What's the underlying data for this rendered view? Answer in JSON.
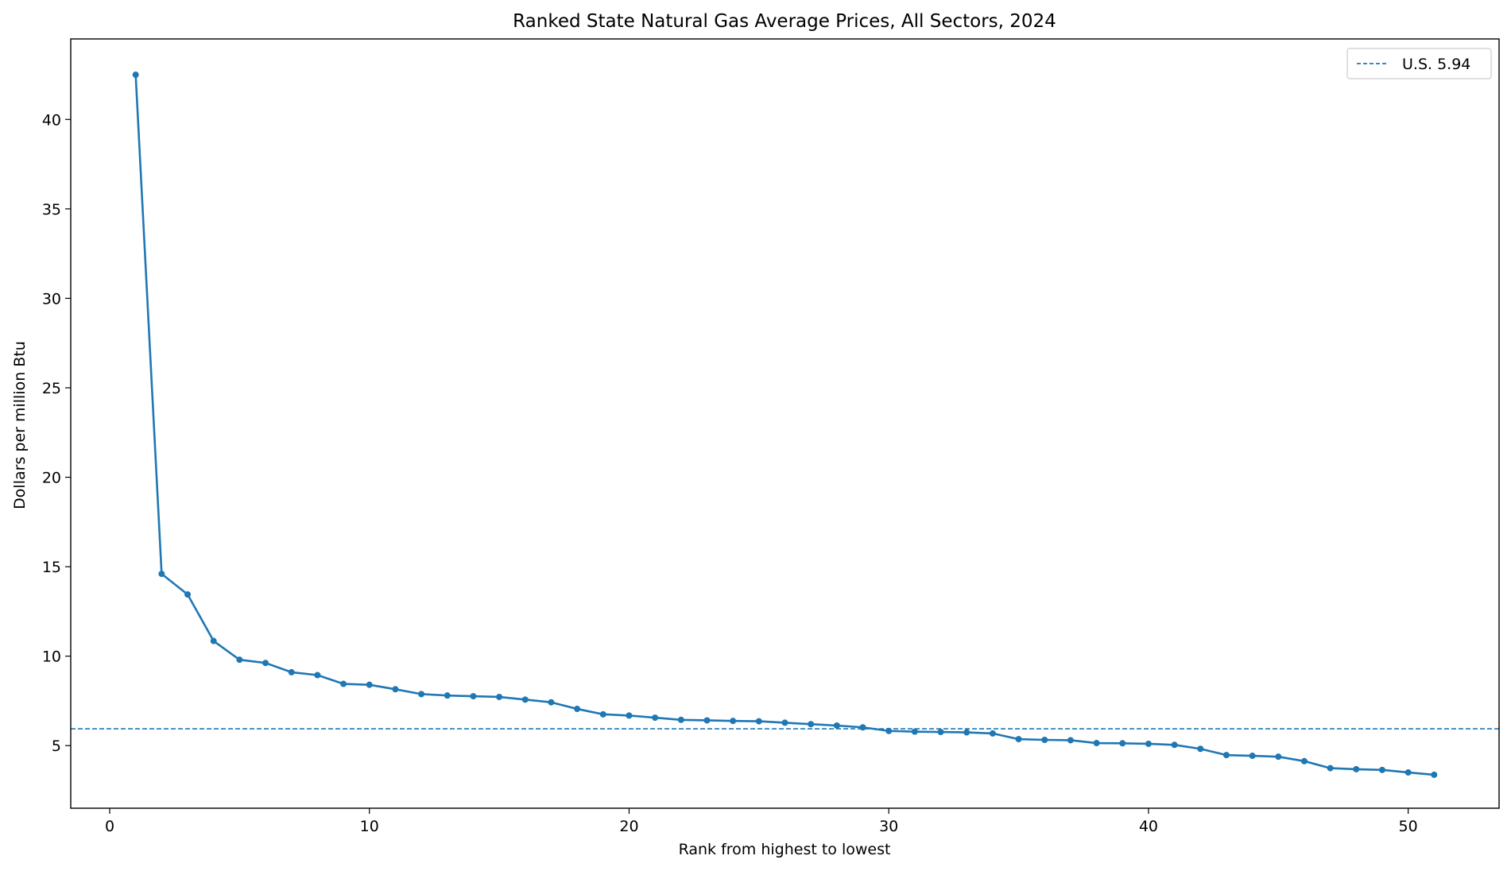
{
  "chart_data": {
    "type": "line",
    "title": "Ranked State Natural Gas Average Prices, All Sectors, 2024",
    "xlabel": "Rank from highest to lowest",
    "ylabel": "Dollars per million Btu",
    "xlim": [
      -1.5,
      53.5
    ],
    "ylim": [
      1.5,
      44.5
    ],
    "xticks": [
      0,
      10,
      20,
      30,
      40,
      50
    ],
    "yticks": [
      5,
      10,
      15,
      20,
      25,
      30,
      35,
      40
    ],
    "grid": false,
    "legend_position": "top-right",
    "series": [
      {
        "name": "",
        "color": "#1f77b4",
        "x": [
          1,
          2,
          3,
          4,
          5,
          6,
          7,
          8,
          9,
          10,
          11,
          12,
          13,
          14,
          15,
          16,
          17,
          18,
          19,
          20,
          21,
          22,
          23,
          24,
          25,
          26,
          27,
          28,
          29,
          30,
          31,
          32,
          33,
          34,
          35,
          36,
          37,
          38,
          39,
          40,
          41,
          42,
          43,
          44,
          45,
          46,
          47,
          48,
          49,
          50,
          51
        ],
        "values": [
          42.5,
          14.6,
          13.45,
          10.85,
          9.8,
          9.62,
          9.1,
          8.94,
          8.45,
          8.4,
          8.15,
          7.88,
          7.8,
          7.76,
          7.72,
          7.57,
          7.42,
          7.05,
          6.75,
          6.68,
          6.56,
          6.44,
          6.41,
          6.38,
          6.36,
          6.28,
          6.2,
          6.12,
          6.02,
          5.82,
          5.78,
          5.76,
          5.74,
          5.68,
          5.36,
          5.32,
          5.3,
          5.14,
          5.13,
          5.1,
          5.04,
          4.82,
          4.47,
          4.43,
          4.38,
          4.13,
          3.74,
          3.68,
          3.64,
          3.5,
          3.37
        ]
      }
    ],
    "reference_line": {
      "label": "U.S. 5.94",
      "value": 5.94,
      "color": "#1f77b4",
      "style": "dashed"
    }
  }
}
